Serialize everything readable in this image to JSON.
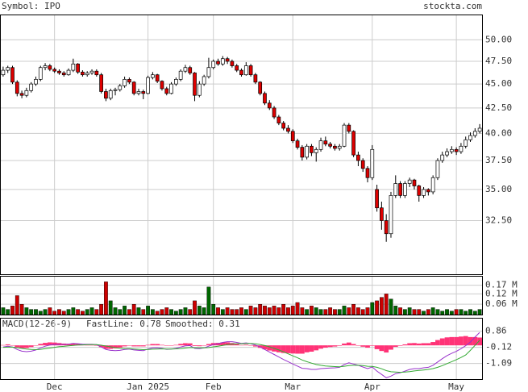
{
  "chart_data": {
    "type": "candlestick",
    "title": "Symbol: IPO",
    "source": "stockta.com",
    "log_scale": true,
    "grid": true,
    "ylim": [
      28.6,
      53
    ],
    "yticks": [
      {
        "value": 32.5,
        "label": "32.50"
      },
      {
        "value": 35,
        "label": "35.00"
      },
      {
        "value": 37.5,
        "label": "37.50"
      },
      {
        "value": 40,
        "label": "40.00"
      },
      {
        "value": 42.5,
        "label": "42.50"
      },
      {
        "value": 45,
        "label": "45.00"
      },
      {
        "value": 47.5,
        "label": "47.50"
      },
      {
        "value": 50,
        "label": "50.00"
      }
    ],
    "xticks": [
      {
        "value": 11,
        "label": "Dec"
      },
      {
        "value": 31,
        "label": "Jan 2025"
      },
      {
        "value": 45,
        "label": "Feb"
      },
      {
        "value": 62,
        "label": "Mar"
      },
      {
        "value": 79,
        "label": "Apr"
      },
      {
        "value": 97,
        "label": "May"
      }
    ],
    "candles": [
      [
        46.0,
        46.9,
        45.8,
        46.5
      ],
      [
        46.5,
        47.0,
        46.2,
        46.8
      ],
      [
        46.8,
        47.0,
        45.0,
        45.2
      ],
      [
        45.2,
        45.4,
        43.7,
        44.0
      ],
      [
        44.0,
        44.3,
        43.5,
        43.8
      ],
      [
        43.8,
        44.6,
        43.6,
        44.3
      ],
      [
        44.3,
        45.2,
        44.1,
        45.0
      ],
      [
        45.0,
        45.8,
        44.8,
        45.5
      ],
      [
        45.5,
        47.0,
        45.3,
        46.8
      ],
      [
        46.8,
        47.3,
        46.5,
        47.0
      ],
      [
        47.0,
        47.2,
        46.4,
        46.6
      ],
      [
        46.6,
        46.8,
        46.2,
        46.4
      ],
      [
        46.4,
        46.6,
        46.0,
        46.2
      ],
      [
        46.2,
        46.4,
        45.8,
        46.0
      ],
      [
        46.0,
        46.7,
        45.9,
        46.5
      ],
      [
        46.5,
        47.8,
        46.3,
        47.2
      ],
      [
        47.2,
        47.3,
        46.1,
        46.3
      ],
      [
        46.3,
        46.5,
        45.8,
        46.0
      ],
      [
        46.0,
        46.4,
        45.8,
        46.2
      ],
      [
        46.2,
        46.6,
        46.0,
        46.4
      ],
      [
        46.4,
        46.6,
        45.8,
        46.0
      ],
      [
        46.0,
        46.2,
        44.0,
        44.2
      ],
      [
        44.2,
        44.5,
        43.2,
        43.5
      ],
      [
        43.5,
        44.5,
        43.3,
        44.3
      ],
      [
        44.3,
        44.6,
        43.8,
        44.4
      ],
      [
        44.4,
        45.0,
        44.2,
        44.8
      ],
      [
        44.8,
        45.8,
        44.6,
        45.5
      ],
      [
        45.5,
        45.7,
        45.0,
        45.2
      ],
      [
        45.2,
        45.3,
        43.8,
        44.0
      ],
      [
        44.0,
        44.5,
        43.8,
        44.2
      ],
      [
        44.2,
        44.4,
        43.4,
        44.0
      ],
      [
        44.0,
        45.9,
        43.9,
        45.7
      ],
      [
        45.7,
        46.3,
        45.5,
        46.0
      ],
      [
        46.0,
        46.1,
        45.1,
        45.3
      ],
      [
        45.3,
        45.4,
        44.3,
        44.5
      ],
      [
        44.5,
        44.7,
        43.8,
        44.0
      ],
      [
        44.0,
        45.2,
        43.9,
        45.0
      ],
      [
        45.0,
        45.7,
        44.8,
        45.5
      ],
      [
        45.5,
        46.6,
        45.3,
        46.4
      ],
      [
        46.4,
        47.1,
        46.2,
        46.8
      ],
      [
        46.8,
        47.0,
        46.0,
        46.2
      ],
      [
        46.2,
        46.3,
        43.2,
        43.8
      ],
      [
        43.8,
        45.3,
        43.6,
        45.0
      ],
      [
        45.0,
        46.0,
        44.8,
        45.8
      ],
      [
        45.8,
        47.9,
        45.6,
        46.8
      ],
      [
        46.8,
        47.7,
        46.6,
        47.5
      ],
      [
        47.5,
        47.8,
        47.0,
        47.2
      ],
      [
        47.2,
        48.1,
        47.0,
        47.8
      ],
      [
        47.8,
        48.0,
        47.2,
        47.5
      ],
      [
        47.5,
        47.7,
        46.8,
        47.0
      ],
      [
        47.0,
        47.2,
        46.3,
        46.5
      ],
      [
        46.5,
        46.7,
        45.8,
        46.0
      ],
      [
        46.0,
        47.4,
        45.9,
        47.0
      ],
      [
        47.0,
        47.2,
        45.8,
        46.0
      ],
      [
        46.0,
        46.2,
        45.0,
        45.2
      ],
      [
        45.2,
        45.3,
        43.8,
        44.0
      ],
      [
        44.0,
        44.2,
        42.8,
        43.0
      ],
      [
        43.0,
        43.3,
        42.3,
        42.5
      ],
      [
        42.5,
        42.7,
        41.4,
        41.6
      ],
      [
        41.6,
        41.8,
        40.8,
        41.0
      ],
      [
        41.0,
        41.2,
        40.3,
        40.5
      ],
      [
        40.5,
        40.8,
        40.0,
        40.2
      ],
      [
        40.2,
        40.4,
        39.1,
        39.3
      ],
      [
        39.3,
        39.5,
        38.5,
        38.7
      ],
      [
        38.7,
        38.9,
        37.5,
        37.8
      ],
      [
        37.8,
        39.0,
        37.6,
        38.8
      ],
      [
        38.8,
        39.0,
        37.9,
        38.2
      ],
      [
        38.2,
        38.7,
        37.4,
        38.5
      ],
      [
        38.5,
        39.6,
        38.3,
        39.3
      ],
      [
        39.3,
        39.7,
        38.8,
        39.0
      ],
      [
        39.0,
        39.2,
        38.6,
        38.8
      ],
      [
        38.8,
        39.0,
        38.4,
        38.6
      ],
      [
        38.6,
        39.0,
        38.4,
        38.8
      ],
      [
        38.8,
        41.0,
        38.7,
        40.8
      ],
      [
        40.8,
        41.0,
        40.0,
        40.2
      ],
      [
        40.2,
        40.3,
        37.8,
        38.0
      ],
      [
        38.0,
        38.3,
        37.0,
        37.5
      ],
      [
        37.5,
        37.7,
        36.5,
        36.8
      ],
      [
        36.8,
        37.0,
        35.6,
        36.0
      ],
      [
        36.0,
        38.9,
        35.8,
        38.5
      ],
      [
        35.0,
        35.4,
        33.2,
        33.5
      ],
      [
        33.5,
        34.0,
        31.8,
        32.5
      ],
      [
        32.5,
        33.0,
        30.9,
        31.5
      ],
      [
        31.5,
        34.8,
        31.2,
        34.5
      ],
      [
        34.5,
        36.2,
        34.3,
        35.5
      ],
      [
        35.5,
        35.7,
        34.3,
        34.5
      ],
      [
        34.5,
        35.7,
        34.3,
        35.5
      ],
      [
        35.5,
        36.0,
        35.2,
        35.8
      ],
      [
        35.8,
        35.9,
        35.0,
        35.3
      ],
      [
        35.3,
        35.4,
        34.0,
        34.5
      ],
      [
        34.5,
        35.2,
        34.3,
        35.0
      ],
      [
        35.0,
        35.1,
        34.5,
        34.8
      ],
      [
        34.8,
        36.2,
        34.6,
        36.0
      ],
      [
        36.0,
        37.7,
        35.8,
        37.5
      ],
      [
        37.5,
        38.3,
        37.3,
        38.0
      ],
      [
        38.0,
        38.6,
        37.8,
        38.3
      ],
      [
        38.3,
        38.8,
        38.1,
        38.5
      ],
      [
        38.5,
        38.7,
        38.0,
        38.3
      ],
      [
        38.3,
        39.1,
        38.1,
        38.8
      ],
      [
        38.8,
        39.7,
        38.6,
        39.4
      ],
      [
        39.4,
        40.1,
        39.2,
        39.8
      ],
      [
        39.8,
        40.5,
        39.6,
        40.2
      ],
      [
        40.2,
        40.9,
        40.0,
        40.5
      ]
    ],
    "volume": {
      "ylim": [
        0,
        0.22
      ],
      "yticks": [
        {
          "value": 0.06,
          "label": "0.06 M"
        },
        {
          "value": 0.12,
          "label": "0.12 M"
        },
        {
          "value": 0.17,
          "label": "0.17 M"
        }
      ],
      "values": [
        0.04,
        0.03,
        0.05,
        0.11,
        0.06,
        0.04,
        0.03,
        0.03,
        0.02,
        0.03,
        0.04,
        0.02,
        0.03,
        0.02,
        0.03,
        0.04,
        0.03,
        0.02,
        0.03,
        0.04,
        0.03,
        0.06,
        0.19,
        0.08,
        0.04,
        0.03,
        0.05,
        0.03,
        0.06,
        0.04,
        0.03,
        0.05,
        0.03,
        0.02,
        0.03,
        0.04,
        0.03,
        0.02,
        0.03,
        0.04,
        0.03,
        0.08,
        0.05,
        0.04,
        0.16,
        0.06,
        0.04,
        0.03,
        0.04,
        0.03,
        0.03,
        0.04,
        0.03,
        0.05,
        0.04,
        0.06,
        0.05,
        0.04,
        0.05,
        0.04,
        0.06,
        0.04,
        0.05,
        0.07,
        0.04,
        0.03,
        0.05,
        0.04,
        0.03,
        0.03,
        0.04,
        0.03,
        0.03,
        0.05,
        0.04,
        0.06,
        0.04,
        0.03,
        0.04,
        0.07,
        0.08,
        0.1,
        0.12,
        0.09,
        0.05,
        0.04,
        0.03,
        0.04,
        0.03,
        0.03,
        0.02,
        0.03,
        0.04,
        0.03,
        0.02,
        0.03,
        0.02,
        0.03,
        0.03,
        0.02,
        0.03,
        0.02,
        0.03
      ]
    },
    "macd": {
      "title": "MACD(12-26-9)",
      "ylim": [
        -2.03,
        1.61
      ],
      "yticks": [
        -1.09,
        -0.12,
        0.86
      ],
      "histogram_color": "#ff3377",
      "series": [
        {
          "name": "FastLine: 0.78",
          "color": "#9933cc",
          "values": [
            -0.1,
            -0.05,
            -0.1,
            -0.25,
            -0.35,
            -0.38,
            -0.35,
            -0.28,
            -0.15,
            -0.05,
            0.02,
            0.05,
            0.06,
            0.05,
            0.07,
            0.12,
            0.1,
            0.07,
            0.06,
            0.06,
            0.04,
            -0.1,
            -0.25,
            -0.3,
            -0.32,
            -0.3,
            -0.25,
            -0.22,
            -0.28,
            -0.3,
            -0.32,
            -0.22,
            -0.15,
            -0.14,
            -0.18,
            -0.24,
            -0.22,
            -0.18,
            -0.1,
            -0.03,
            -0.01,
            -0.18,
            -0.2,
            -0.15,
            -0.05,
            0.05,
            0.1,
            0.18,
            0.22,
            0.22,
            0.18,
            0.12,
            0.15,
            0.1,
            0.02,
            -0.1,
            -0.25,
            -0.4,
            -0.55,
            -0.7,
            -0.85,
            -0.98,
            -1.12,
            -1.25,
            -1.38,
            -1.4,
            -1.45,
            -1.45,
            -1.4,
            -1.38,
            -1.36,
            -1.35,
            -1.32,
            -1.15,
            -1.05,
            -1.12,
            -1.2,
            -1.3,
            -1.4,
            -1.3,
            -1.55,
            -1.75,
            -1.95,
            -1.85,
            -1.7,
            -1.65,
            -1.55,
            -1.45,
            -1.4,
            -1.4,
            -1.35,
            -1.32,
            -1.2,
            -1.0,
            -0.8,
            -0.62,
            -0.48,
            -0.36,
            -0.2,
            -0.02,
            0.2,
            0.5,
            0.78
          ]
        },
        {
          "name": "Smoothed: 0.31",
          "color": "#33aa33",
          "values": [
            -0.12,
            -0.11,
            -0.11,
            -0.14,
            -0.18,
            -0.22,
            -0.25,
            -0.26,
            -0.24,
            -0.2,
            -0.16,
            -0.12,
            -0.08,
            -0.06,
            -0.03,
            0.0,
            0.02,
            0.03,
            0.04,
            0.04,
            0.04,
            0.01,
            -0.04,
            -0.09,
            -0.14,
            -0.17,
            -0.19,
            -0.2,
            -0.22,
            -0.24,
            -0.26,
            -0.25,
            -0.23,
            -0.22,
            -0.21,
            -0.22,
            -0.22,
            -0.21,
            -0.19,
            -0.16,
            -0.13,
            -0.14,
            -0.15,
            -0.15,
            -0.13,
            -0.09,
            -0.05,
            0.0,
            0.04,
            0.08,
            0.1,
            0.1,
            0.11,
            0.11,
            0.09,
            0.05,
            -0.01,
            -0.09,
            -0.18,
            -0.28,
            -0.39,
            -0.51,
            -0.63,
            -0.75,
            -0.88,
            -0.98,
            -1.07,
            -1.15,
            -1.2,
            -1.24,
            -1.26,
            -1.28,
            -1.29,
            -1.26,
            -1.22,
            -1.2,
            -1.2,
            -1.22,
            -1.26,
            -1.27,
            -1.32,
            -1.41,
            -1.52,
            -1.59,
            -1.61,
            -1.62,
            -1.61,
            -1.58,
            -1.54,
            -1.51,
            -1.48,
            -1.45,
            -1.4,
            -1.32,
            -1.22,
            -1.1,
            -0.98,
            -0.86,
            -0.73,
            -0.58,
            -0.3,
            0.0,
            0.31
          ]
        }
      ]
    }
  }
}
